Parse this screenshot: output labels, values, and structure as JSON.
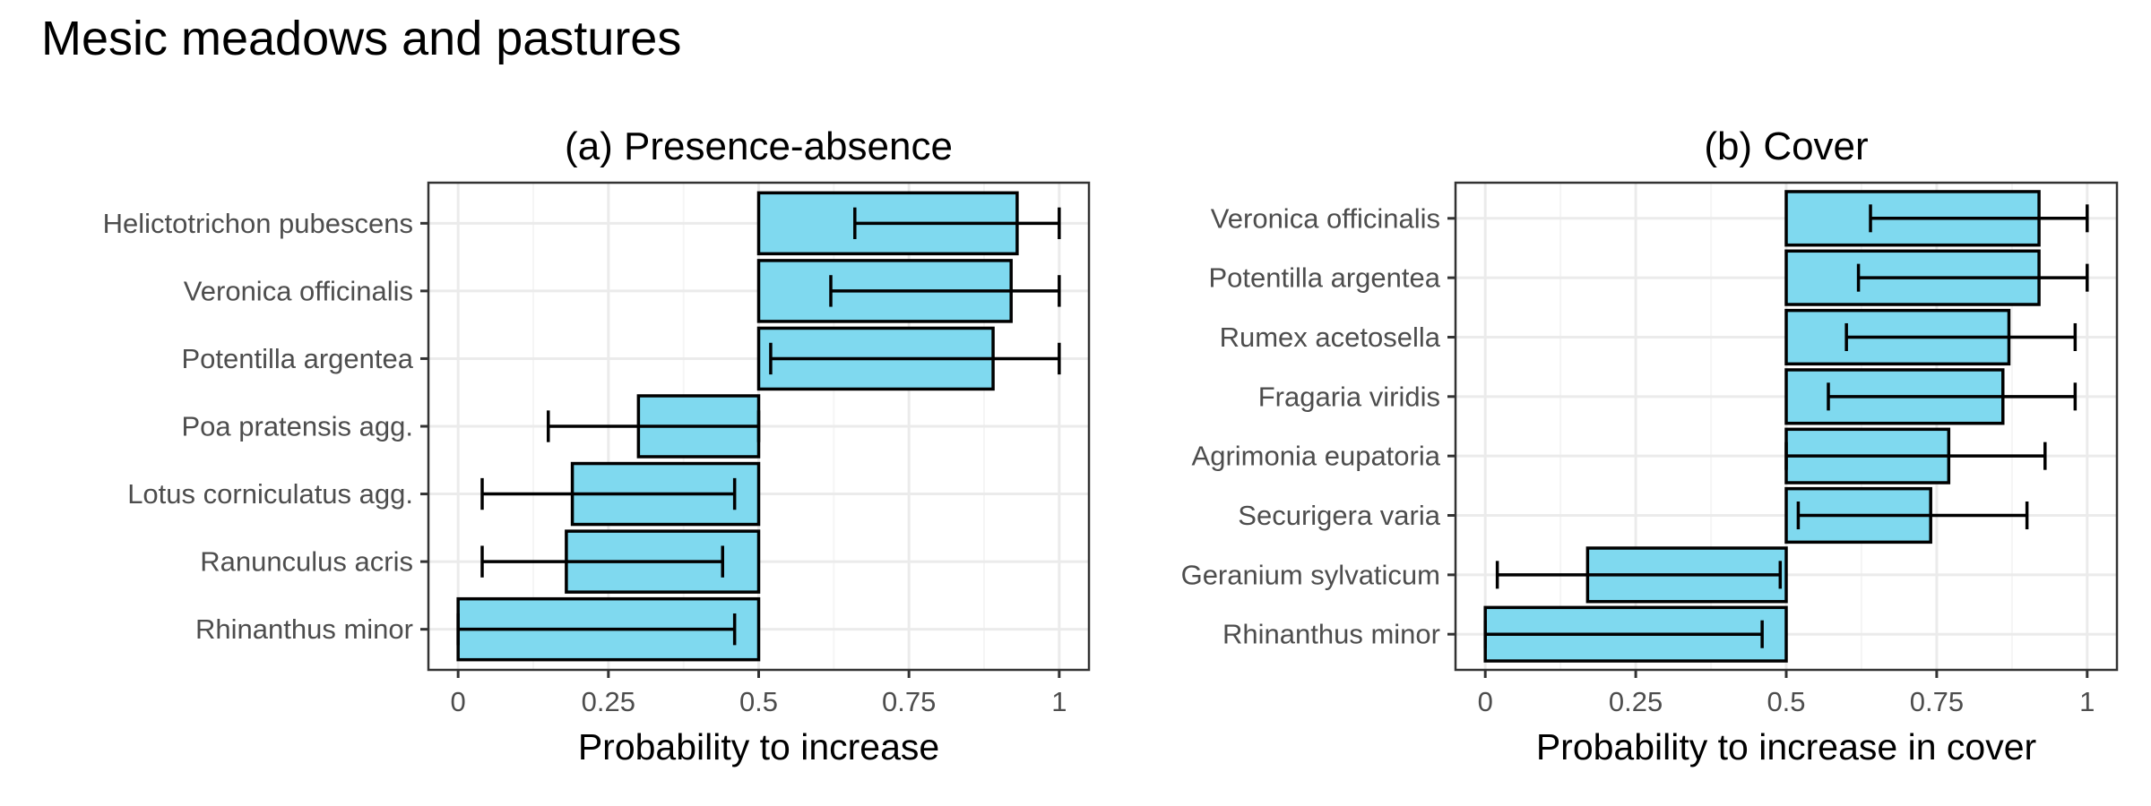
{
  "figure": {
    "title": "Mesic meadows and pastures"
  },
  "colors": {
    "bar_fill": "#7fd9ef",
    "bar_stroke": "#000000",
    "grid_major": "#ebebeb",
    "grid_minor": "#f5f5f5",
    "panel_border": "#333333",
    "tick_text": "#4d4d4d"
  },
  "chart_data": [
    {
      "type": "bar",
      "orientation": "horizontal",
      "title": "(a) Presence-absence",
      "xlabel": "Probability to increase",
      "ylabel": "",
      "xlim": [
        0,
        1
      ],
      "baseline": 0.5,
      "x_ticks": [
        0,
        0.25,
        0.5,
        0.75,
        1
      ],
      "x_tick_labels": [
        "0",
        "0.25",
        "0.5",
        "0.75",
        "1"
      ],
      "grid": true,
      "categories": [
        "Helictotrichon pubescens",
        "Veronica officinalis",
        "Potentilla argentea",
        "Poa pratensis agg.",
        "Lotus corniculatus agg.",
        "Ranunculus acris",
        "Rhinanthus minor"
      ],
      "values": [
        0.93,
        0.92,
        0.89,
        0.3,
        0.19,
        0.18,
        0.0
      ],
      "error_low": [
        0.66,
        0.62,
        0.52,
        0.15,
        0.04,
        0.04,
        0.0
      ],
      "error_high": [
        1.0,
        1.0,
        1.0,
        0.5,
        0.46,
        0.44,
        0.46
      ]
    },
    {
      "type": "bar",
      "orientation": "horizontal",
      "title": "(b) Cover",
      "xlabel": "Probability to increase in cover",
      "ylabel": "",
      "xlim": [
        0,
        1
      ],
      "baseline": 0.5,
      "x_ticks": [
        0,
        0.25,
        0.5,
        0.75,
        1
      ],
      "x_tick_labels": [
        "0",
        "0.25",
        "0.5",
        "0.75",
        "1"
      ],
      "grid": true,
      "categories": [
        "Veronica officinalis",
        "Potentilla argentea",
        "Rumex acetosella",
        "Fragaria viridis",
        "Agrimonia eupatoria",
        "Securigera varia",
        "Geranium sylvaticum",
        "Rhinanthus minor"
      ],
      "values": [
        0.92,
        0.92,
        0.87,
        0.86,
        0.77,
        0.74,
        0.17,
        0.0
      ],
      "error_low": [
        0.64,
        0.62,
        0.6,
        0.57,
        0.5,
        0.52,
        0.02,
        0.0
      ],
      "error_high": [
        1.0,
        1.0,
        0.98,
        0.98,
        0.93,
        0.9,
        0.49,
        0.46
      ]
    }
  ]
}
